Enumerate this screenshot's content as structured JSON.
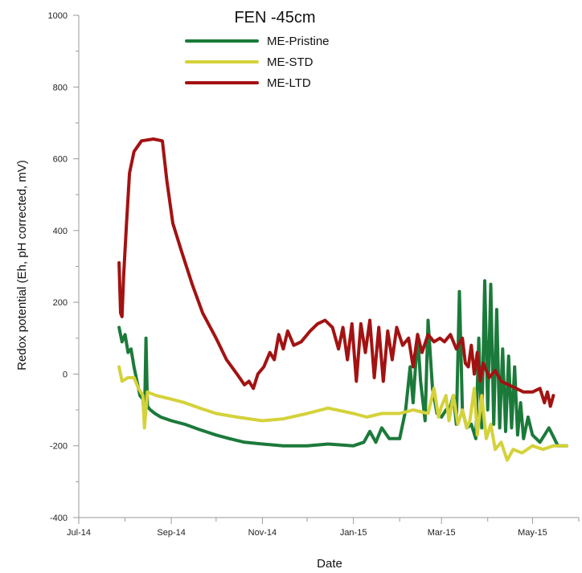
{
  "chart_data": {
    "type": "line",
    "title": "FEN -45cm",
    "xlabel": "Date",
    "ylabel": "Redox potential (Eh, pH corrected, mV)",
    "ylim": [
      -400,
      1000
    ],
    "yticks": [
      -400,
      -200,
      0,
      200,
      400,
      600,
      800,
      1000
    ],
    "xlim": [
      "2014-07-01",
      "2015-06-01"
    ],
    "xticks": [
      {
        "date": "2014-07-01",
        "label": "Jul-14"
      },
      {
        "date": "2014-09-01",
        "label": "Sep-14"
      },
      {
        "date": "2014-11-01",
        "label": "Nov-14"
      },
      {
        "date": "2015-01-01",
        "label": "Jan-15"
      },
      {
        "date": "2015-03-01",
        "label": "Mar-15"
      },
      {
        "date": "2015-05-01",
        "label": "May-15"
      }
    ],
    "legend_position": "top-center",
    "series": [
      {
        "name": "ME-Pristine",
        "color": "#1b7a3a",
        "points": [
          [
            "2014-07-28",
            130
          ],
          [
            "2014-07-30",
            90
          ],
          [
            "2014-08-01",
            110
          ],
          [
            "2014-08-03",
            60
          ],
          [
            "2014-08-05",
            70
          ],
          [
            "2014-08-07",
            20
          ],
          [
            "2014-08-09",
            -20
          ],
          [
            "2014-08-11",
            -60
          ],
          [
            "2014-08-13",
            -70
          ],
          [
            "2014-08-14",
            -130
          ],
          [
            "2014-08-15",
            100
          ],
          [
            "2014-08-16",
            -90
          ],
          [
            "2014-08-18",
            -100
          ],
          [
            "2014-08-21",
            -110
          ],
          [
            "2014-08-25",
            -120
          ],
          [
            "2014-09-01",
            -130
          ],
          [
            "2014-09-10",
            -140
          ],
          [
            "2014-09-20",
            -155
          ],
          [
            "2014-10-01",
            -170
          ],
          [
            "2014-10-10",
            -180
          ],
          [
            "2014-10-20",
            -190
          ],
          [
            "2014-11-01",
            -195
          ],
          [
            "2014-11-15",
            -200
          ],
          [
            "2014-12-01",
            -200
          ],
          [
            "2014-12-15",
            -195
          ],
          [
            "2015-01-01",
            -200
          ],
          [
            "2015-01-08",
            -190
          ],
          [
            "2015-01-12",
            -160
          ],
          [
            "2015-01-16",
            -190
          ],
          [
            "2015-01-20",
            -150
          ],
          [
            "2015-01-25",
            -180
          ],
          [
            "2015-02-01",
            -180
          ],
          [
            "2015-02-05",
            -100
          ],
          [
            "2015-02-08",
            20
          ],
          [
            "2015-02-10",
            -80
          ],
          [
            "2015-02-13",
            110
          ],
          [
            "2015-02-15",
            -20
          ],
          [
            "2015-02-18",
            -130
          ],
          [
            "2015-02-20",
            150
          ],
          [
            "2015-02-23",
            -40
          ],
          [
            "2015-02-26",
            -110
          ],
          [
            "2015-03-01",
            -120
          ],
          [
            "2015-03-04",
            -100
          ],
          [
            "2015-03-07",
            -90
          ],
          [
            "2015-03-09",
            -60
          ],
          [
            "2015-03-11",
            -140
          ],
          [
            "2015-03-13",
            230
          ],
          [
            "2015-03-15",
            -100
          ],
          [
            "2015-03-18",
            -150
          ],
          [
            "2015-03-21",
            -140
          ],
          [
            "2015-03-24",
            -180
          ],
          [
            "2015-03-26",
            100
          ],
          [
            "2015-03-28",
            -150
          ],
          [
            "2015-03-30",
            260
          ],
          [
            "2015-04-01",
            -100
          ],
          [
            "2015-04-03",
            250
          ],
          [
            "2015-04-05",
            -140
          ],
          [
            "2015-04-07",
            180
          ],
          [
            "2015-04-09",
            -150
          ],
          [
            "2015-04-11",
            70
          ],
          [
            "2015-04-13",
            -160
          ],
          [
            "2015-04-15",
            50
          ],
          [
            "2015-04-17",
            -150
          ],
          [
            "2015-04-19",
            20
          ],
          [
            "2015-04-21",
            -170
          ],
          [
            "2015-04-23",
            -80
          ],
          [
            "2015-04-25",
            -180
          ],
          [
            "2015-04-28",
            -120
          ],
          [
            "2015-05-01",
            -170
          ],
          [
            "2015-05-06",
            -190
          ],
          [
            "2015-05-12",
            -150
          ],
          [
            "2015-05-18",
            -200
          ],
          [
            "2015-05-24",
            -200
          ]
        ]
      },
      {
        "name": "ME-STD",
        "color": "#d4d23a",
        "points": [
          [
            "2014-07-28",
            20
          ],
          [
            "2014-07-30",
            -20
          ],
          [
            "2014-08-03",
            -10
          ],
          [
            "2014-08-07",
            -10
          ],
          [
            "2014-08-10",
            -40
          ],
          [
            "2014-08-13",
            -60
          ],
          [
            "2014-08-14",
            -150
          ],
          [
            "2014-08-16",
            -50
          ],
          [
            "2014-08-22",
            -60
          ],
          [
            "2014-09-01",
            -70
          ],
          [
            "2014-09-10",
            -80
          ],
          [
            "2014-09-20",
            -95
          ],
          [
            "2014-10-01",
            -110
          ],
          [
            "2014-10-15",
            -120
          ],
          [
            "2014-11-01",
            -130
          ],
          [
            "2014-11-15",
            -125
          ],
          [
            "2014-12-01",
            -110
          ],
          [
            "2014-12-15",
            -95
          ],
          [
            "2015-01-01",
            -110
          ],
          [
            "2015-01-10",
            -120
          ],
          [
            "2015-01-20",
            -110
          ],
          [
            "2015-02-01",
            -110
          ],
          [
            "2015-02-10",
            -100
          ],
          [
            "2015-02-20",
            -110
          ],
          [
            "2015-02-24",
            -40
          ],
          [
            "2015-02-27",
            -120
          ],
          [
            "2015-03-01",
            -90
          ],
          [
            "2015-03-04",
            -60
          ],
          [
            "2015-03-06",
            -130
          ],
          [
            "2015-03-09",
            -60
          ],
          [
            "2015-03-12",
            -140
          ],
          [
            "2015-03-15",
            -100
          ],
          [
            "2015-03-18",
            -150
          ],
          [
            "2015-03-20",
            -130
          ],
          [
            "2015-03-23",
            -40
          ],
          [
            "2015-03-25",
            -170
          ],
          [
            "2015-03-28",
            -60
          ],
          [
            "2015-03-31",
            -180
          ],
          [
            "2015-04-03",
            -140
          ],
          [
            "2015-04-06",
            -210
          ],
          [
            "2015-04-10",
            -190
          ],
          [
            "2015-04-14",
            -240
          ],
          [
            "2015-04-18",
            -210
          ],
          [
            "2015-04-24",
            -220
          ],
          [
            "2015-05-01",
            -200
          ],
          [
            "2015-05-08",
            -210
          ],
          [
            "2015-05-15",
            -200
          ],
          [
            "2015-05-24",
            -200
          ]
        ]
      },
      {
        "name": "ME-LTD",
        "color": "#a31212",
        "points": [
          [
            "2014-07-28",
            310
          ],
          [
            "2014-07-29",
            170
          ],
          [
            "2014-07-30",
            160
          ],
          [
            "2014-07-31",
            270
          ],
          [
            "2014-08-02",
            420
          ],
          [
            "2014-08-04",
            560
          ],
          [
            "2014-08-07",
            620
          ],
          [
            "2014-08-12",
            650
          ],
          [
            "2014-08-20",
            655
          ],
          [
            "2014-08-26",
            650
          ],
          [
            "2014-08-29",
            540
          ],
          [
            "2014-09-02",
            420
          ],
          [
            "2014-09-08",
            340
          ],
          [
            "2014-09-15",
            250
          ],
          [
            "2014-09-22",
            170
          ],
          [
            "2014-10-01",
            100
          ],
          [
            "2014-10-08",
            40
          ],
          [
            "2014-10-15",
            0
          ],
          [
            "2014-10-20",
            -30
          ],
          [
            "2014-10-23",
            -20
          ],
          [
            "2014-10-26",
            -40
          ],
          [
            "2014-10-29",
            0
          ],
          [
            "2014-11-02",
            20
          ],
          [
            "2014-11-06",
            60
          ],
          [
            "2014-11-09",
            40
          ],
          [
            "2014-11-12",
            110
          ],
          [
            "2014-11-15",
            70
          ],
          [
            "2014-11-18",
            120
          ],
          [
            "2014-11-22",
            80
          ],
          [
            "2014-11-27",
            90
          ],
          [
            "2014-12-03",
            120
          ],
          [
            "2014-12-08",
            140
          ],
          [
            "2014-12-13",
            150
          ],
          [
            "2014-12-18",
            130
          ],
          [
            "2014-12-22",
            70
          ],
          [
            "2014-12-25",
            130
          ],
          [
            "2014-12-28",
            40
          ],
          [
            "2014-12-31",
            140
          ],
          [
            "2015-01-03",
            -20
          ],
          [
            "2015-01-06",
            140
          ],
          [
            "2015-01-09",
            60
          ],
          [
            "2015-01-12",
            150
          ],
          [
            "2015-01-15",
            -10
          ],
          [
            "2015-01-18",
            130
          ],
          [
            "2015-01-21",
            -20
          ],
          [
            "2015-01-24",
            120
          ],
          [
            "2015-01-27",
            40
          ],
          [
            "2015-01-30",
            130
          ],
          [
            "2015-02-03",
            80
          ],
          [
            "2015-02-07",
            100
          ],
          [
            "2015-02-10",
            20
          ],
          [
            "2015-02-13",
            110
          ],
          [
            "2015-02-16",
            60
          ],
          [
            "2015-02-20",
            110
          ],
          [
            "2015-02-24",
            90
          ],
          [
            "2015-02-28",
            100
          ],
          [
            "2015-03-03",
            90
          ],
          [
            "2015-03-07",
            110
          ],
          [
            "2015-03-11",
            70
          ],
          [
            "2015-03-15",
            100
          ],
          [
            "2015-03-17",
            30
          ],
          [
            "2015-03-19",
            20
          ],
          [
            "2015-03-21",
            80
          ],
          [
            "2015-03-23",
            0
          ],
          [
            "2015-03-25",
            60
          ],
          [
            "2015-03-27",
            -20
          ],
          [
            "2015-03-29",
            30
          ],
          [
            "2015-04-02",
            -10
          ],
          [
            "2015-04-06",
            10
          ],
          [
            "2015-04-10",
            -20
          ],
          [
            "2015-04-15",
            -30
          ],
          [
            "2015-04-20",
            -40
          ],
          [
            "2015-04-25",
            -50
          ],
          [
            "2015-05-01",
            -50
          ],
          [
            "2015-05-06",
            -40
          ],
          [
            "2015-05-09",
            -80
          ],
          [
            "2015-05-11",
            -50
          ],
          [
            "2015-05-13",
            -90
          ],
          [
            "2015-05-15",
            -60
          ]
        ]
      }
    ]
  }
}
